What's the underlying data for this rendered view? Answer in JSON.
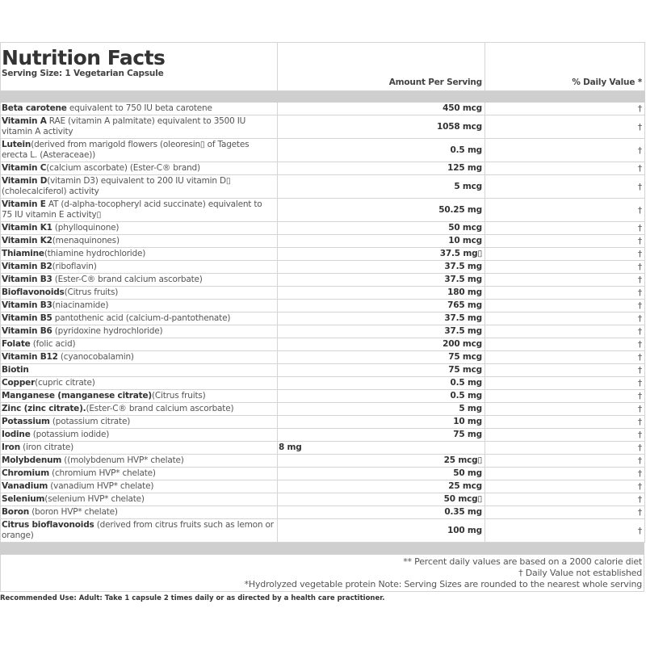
{
  "header": {
    "title": "Nutrition Facts",
    "serving_size": "Serving Size:  1   Vegetarian Capsule",
    "amount_col": "Amount Per Serving",
    "dv_col": "% Daily Value *"
  },
  "rows": [
    {
      "name": "Beta carotene",
      "desc": " equivalent to 750 IU beta carotene",
      "amount": "450 mcg",
      "dv": "†"
    },
    {
      "name": "Vitamin A",
      "desc": " RAE (vitamin A palmitate) equivalent to 3500 IU vitamin A activity",
      "amount": "1058 mcg",
      "dv": "†"
    },
    {
      "name": "Lutein",
      "desc": "(derived from marigold flowers (oleoresin▯ of Tagetes erecta L. (Asteraceae))",
      "amount": "0.5 mg",
      "dv": "†"
    },
    {
      "name": "Vitamin C",
      "desc": "(calcium ascorbate) (Ester-C® brand)",
      "amount": "125 mg",
      "dv": "†"
    },
    {
      "name": "Vitamin D",
      "desc": "(vitamin D3) equivalent to 200 IU vitamin D▯ (cholecalciferol) activity",
      "amount": "5 mcg",
      "dv": "†"
    },
    {
      "name": "Vitamin E",
      "desc": " AT (d-alpha-tocopheryl acid succinate) equivalent to 75 IU vitamin E activity▯",
      "amount": "50.25 mg",
      "dv": "†"
    },
    {
      "name": "Vitamin K1",
      "desc": " (phylloquinone)",
      "amount": "50 mcg",
      "dv": "†"
    },
    {
      "name": "Vitamin K2",
      "desc": "(menaquinones)",
      "amount": "10 mcg",
      "dv": "†"
    },
    {
      "name": "Thiamine",
      "desc": "(thiamine hydrochloride)",
      "amount": "37.5 mg▯",
      "dv": "†"
    },
    {
      "name": "Vitamin B2",
      "desc": "(riboflavin)",
      "amount": "37.5 mg",
      "dv": "†"
    },
    {
      "name": "Vitamin B3",
      "desc": " (Ester-C® brand calcium ascorbate)",
      "amount": "37.5 mg",
      "dv": "†"
    },
    {
      "name": "Bioflavonoids",
      "desc": "(Citrus fruits)",
      "amount": "180 mg",
      "dv": "†"
    },
    {
      "name": "Vitamin B3",
      "desc": "(niacinamide)",
      "amount": "765 mg",
      "dv": "†"
    },
    {
      "name": "Vitamin B5",
      "desc": " pantothenic acid (calcium-d-pantothenate)",
      "amount": "37.5 mg",
      "dv": "†"
    },
    {
      "name": "Vitamin B6",
      "desc": " (pyridoxine hydrochloride)",
      "amount": "37.5 mg",
      "dv": "†"
    },
    {
      "name": "Folate",
      "desc": " (folic acid)",
      "amount": "200 mcg",
      "dv": "†"
    },
    {
      "name": "Vitamin B12",
      "desc": " (cyanocobalamin)",
      "amount": "75 mcg",
      "dv": "†"
    },
    {
      "name": "Biotin",
      "desc": "",
      "amount": "75 mcg",
      "dv": "†"
    },
    {
      "name": "Copper",
      "desc": "(cupric citrate)",
      "amount": "0.5 mg",
      "dv": "†"
    },
    {
      "name": "Manganese (manganese citrate)",
      "desc": "(Citrus fruits)",
      "amount": "0.5 mg",
      "dv": "†"
    },
    {
      "name": "Zinc (zinc citrate).",
      "desc": "(Ester-C® brand calcium ascorbate)",
      "amount": "5 mg",
      "dv": "†"
    },
    {
      "name": "Potassium",
      "desc": " (potassium citrate)",
      "amount": "10 mg",
      "dv": "†"
    },
    {
      "name": "Iodine",
      "desc": " (potassium iodide)",
      "amount": "75 mg",
      "dv": "†"
    },
    {
      "name": "Iron",
      "desc": " (iron citrate)",
      "amount": "8 mg",
      "dv": "†",
      "amount_align": "left"
    },
    {
      "name": "Molybdenum",
      "desc": " ((molybdenum HVP* chelate)",
      "amount": "25 mcg▯",
      "dv": "†"
    },
    {
      "name": "Chromium",
      "desc": " (chromium HVP* chelate)",
      "amount": "50 mg",
      "dv": "†"
    },
    {
      "name": "Vanadium",
      "desc": " (vanadium HVP* chelate)",
      "amount": "25 mcg",
      "dv": "†"
    },
    {
      "name": "Selenium",
      "desc": "(selenium HVP* chelate)",
      "amount": "50 mcg▯",
      "dv": "†"
    },
    {
      "name": "Boron",
      "desc": " (boron HVP* chelate)",
      "amount": "0.35 mg",
      "dv": "†"
    },
    {
      "name": "Citrus bioflavonoids",
      "desc": " (derived from citrus fruits such as lemon or orange)",
      "amount": "100 mg",
      "dv": "†"
    }
  ],
  "notes": [
    "** Percent daily values are based on a 2000 calorie diet",
    "† Daily Value not established",
    "*Hydrolyzed vegetable protein Note: Serving Sizes are rounded to the nearest whole serving"
  ],
  "recommended_use": "Recommended Use:  Adult: Take 1 capsule 2 times daily or as directed by a health care practitioner."
}
